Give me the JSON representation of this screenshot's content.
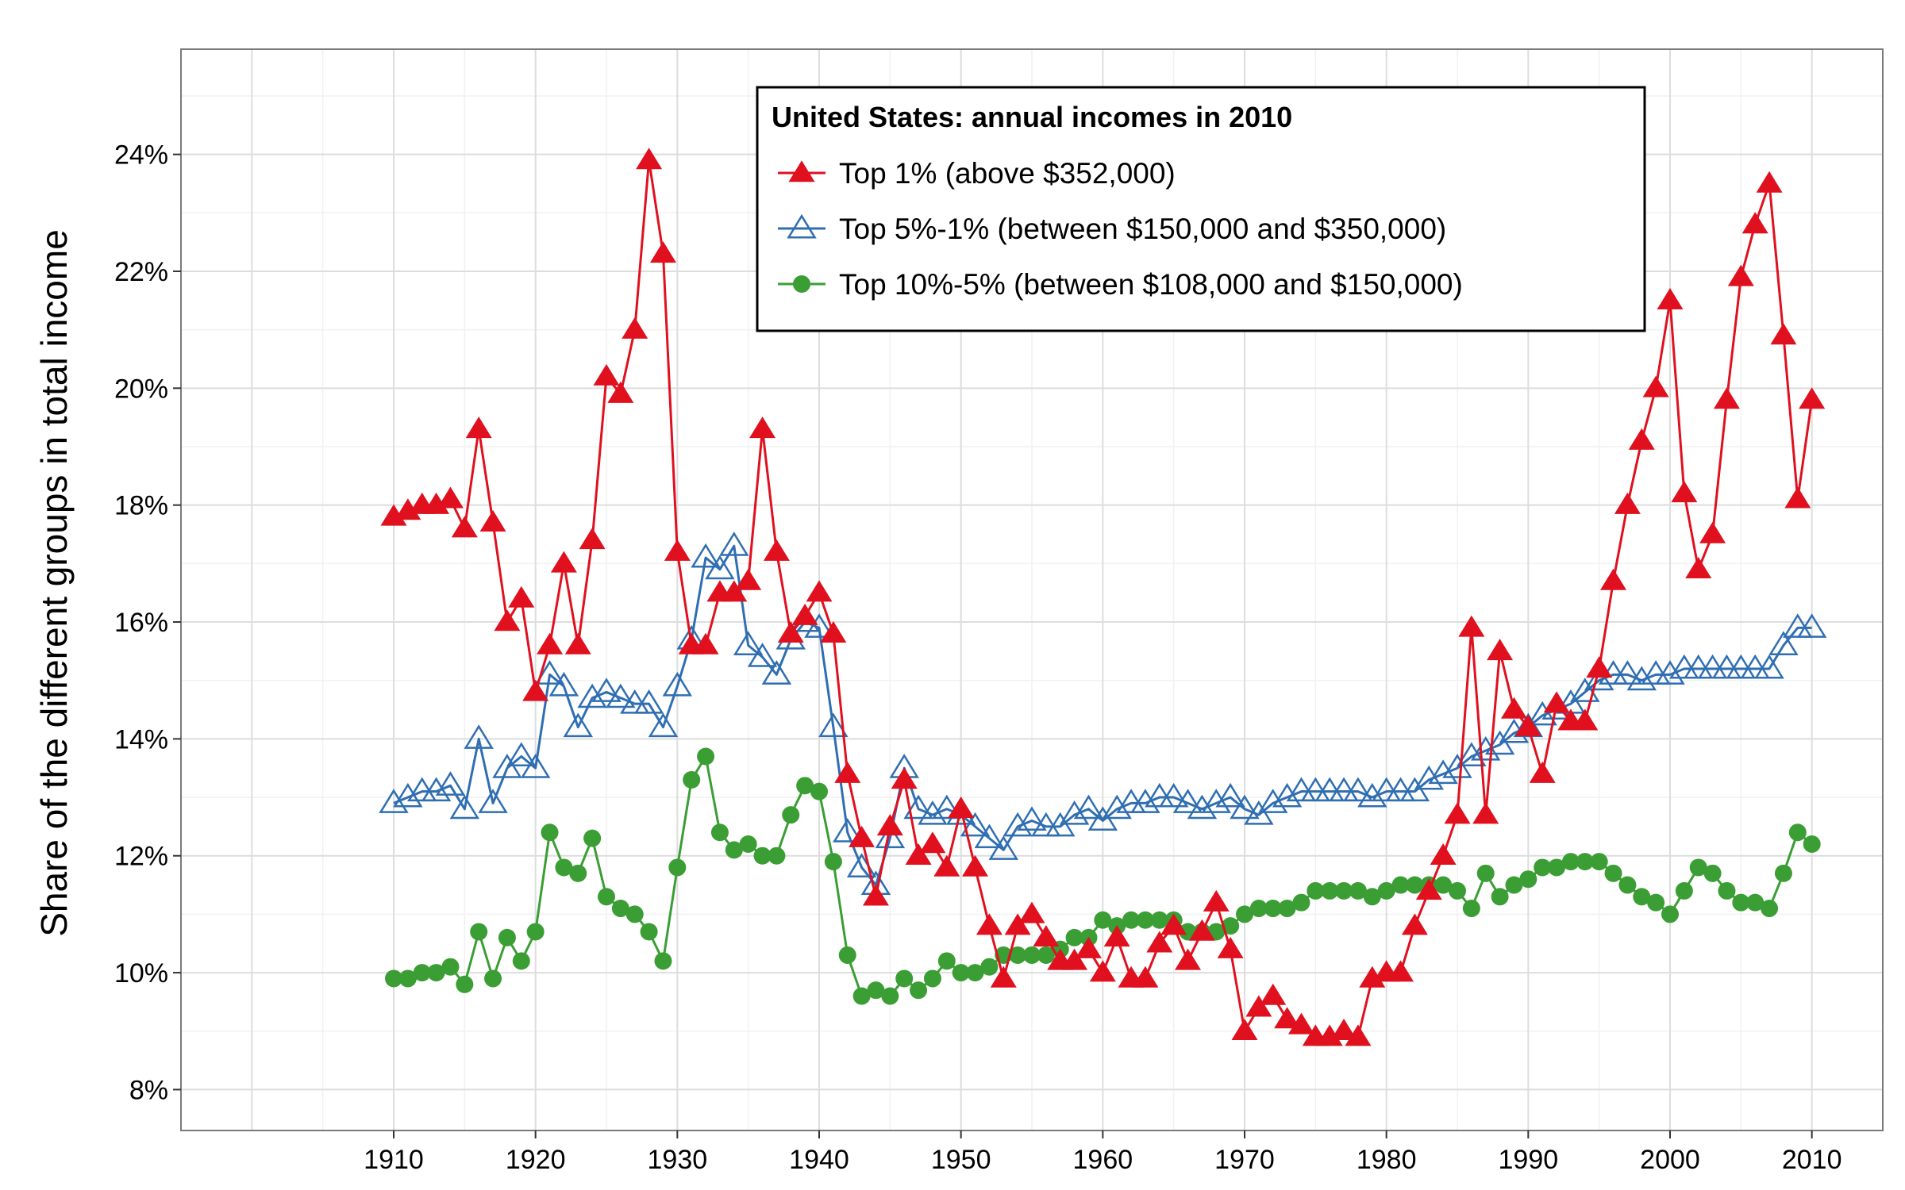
{
  "chart_data": {
    "type": "line",
    "title": "",
    "xlabel": "",
    "ylabel": "Share of the different groups in total income",
    "legend_title": "United States: annual incomes in 2010",
    "legend_position": "top-center",
    "grid": true,
    "xlim": [
      1895,
      2015
    ],
    "ylim": [
      7.3,
      25.8
    ],
    "x_ticks": [
      1910,
      1920,
      1930,
      1940,
      1950,
      1960,
      1970,
      1980,
      1990,
      2000,
      2010
    ],
    "x_tick_labels": [
      "1910",
      "1920",
      "1930",
      "1940",
      "1950",
      "1960",
      "1970",
      "1980",
      "1990",
      "2000",
      "2010"
    ],
    "y_ticks": [
      8,
      10,
      12,
      14,
      16,
      18,
      20,
      22,
      24
    ],
    "y_tick_labels": [
      "8%",
      "10%",
      "12%",
      "14%",
      "16%",
      "18%",
      "20%",
      "22%",
      "24%"
    ],
    "x_start": 1910,
    "series": [
      {
        "name": "Top 1% (above $352,000)",
        "color": "#e0101e",
        "marker": "filled-triangle",
        "values": [
          17.8,
          17.9,
          18.0,
          18.0,
          18.1,
          17.6,
          19.3,
          17.7,
          16.0,
          16.4,
          14.8,
          15.6,
          17.0,
          15.6,
          17.4,
          20.2,
          19.9,
          21.0,
          23.9,
          22.3,
          17.2,
          15.6,
          15.6,
          16.5,
          16.5,
          16.7,
          19.3,
          17.2,
          15.8,
          16.1,
          16.5,
          15.8,
          13.4,
          12.3,
          11.3,
          12.5,
          13.3,
          12.0,
          12.2,
          11.8,
          12.8,
          11.8,
          10.8,
          9.9,
          10.8,
          11.0,
          10.6,
          10.2,
          10.2,
          10.4,
          10.0,
          10.6,
          9.9,
          9.9,
          10.5,
          10.8,
          10.2,
          10.7,
          11.2,
          10.4,
          9.0,
          9.4,
          9.6,
          9.2,
          9.1,
          8.9,
          8.9,
          9.0,
          8.9,
          9.9,
          10.0,
          10.0,
          10.8,
          11.4,
          12.0,
          12.7,
          15.9,
          12.7,
          15.5,
          14.5,
          14.2,
          13.4,
          14.6,
          14.3,
          14.3,
          15.2,
          16.7,
          18.0,
          19.1,
          20.0,
          21.5,
          18.2,
          16.9,
          17.5,
          19.8,
          21.9,
          22.8,
          23.5,
          20.9,
          18.1,
          19.8
        ]
      },
      {
        "name": "Top 5%-1% (between $150,000 and $350,000)",
        "color": "#2f6eb2",
        "marker": "open-triangle",
        "values": [
          12.9,
          13.0,
          13.1,
          13.1,
          13.2,
          12.8,
          14.0,
          12.9,
          13.5,
          13.7,
          13.5,
          15.1,
          14.9,
          14.2,
          14.7,
          14.8,
          14.7,
          14.6,
          14.6,
          14.2,
          14.9,
          15.7,
          17.1,
          16.9,
          17.3,
          15.6,
          15.4,
          15.1,
          15.7,
          16.0,
          15.9,
          14.2,
          12.4,
          11.8,
          11.5,
          12.3,
          13.5,
          12.8,
          12.7,
          12.8,
          12.7,
          12.5,
          12.3,
          12.1,
          12.5,
          12.6,
          12.5,
          12.5,
          12.7,
          12.8,
          12.6,
          12.8,
          12.9,
          12.9,
          13.0,
          13.0,
          12.9,
          12.8,
          12.9,
          13.0,
          12.8,
          12.7,
          12.9,
          13.0,
          13.1,
          13.1,
          13.1,
          13.1,
          13.1,
          13.0,
          13.1,
          13.1,
          13.1,
          13.3,
          13.4,
          13.5,
          13.7,
          13.8,
          13.9,
          14.1,
          14.2,
          14.4,
          14.5,
          14.6,
          14.8,
          15.0,
          15.1,
          15.1,
          15.0,
          15.1,
          15.1,
          15.2,
          15.2,
          15.2,
          15.2,
          15.2,
          15.2,
          15.2,
          15.6,
          15.9,
          15.9
        ]
      },
      {
        "name": "Top 10%-5% (between $108,000 and $150,000)",
        "color": "#3a9e34",
        "marker": "filled-circle",
        "values": [
          9.9,
          9.9,
          10.0,
          10.0,
          10.1,
          9.8,
          10.7,
          9.9,
          10.6,
          10.2,
          10.7,
          12.4,
          11.8,
          11.7,
          12.3,
          11.3,
          11.1,
          11.0,
          10.7,
          10.2,
          11.8,
          13.3,
          13.7,
          12.4,
          12.1,
          12.2,
          12.0,
          12.0,
          12.7,
          13.2,
          13.1,
          11.9,
          10.3,
          9.6,
          9.7,
          9.6,
          9.9,
          9.7,
          9.9,
          10.2,
          10.0,
          10.0,
          10.1,
          10.3,
          10.3,
          10.3,
          10.3,
          10.4,
          10.6,
          10.6,
          10.9,
          10.8,
          10.9,
          10.9,
          10.9,
          10.9,
          10.7,
          10.7,
          10.7,
          10.8,
          11.0,
          11.1,
          11.1,
          11.1,
          11.2,
          11.4,
          11.4,
          11.4,
          11.4,
          11.3,
          11.4,
          11.5,
          11.5,
          11.5,
          11.5,
          11.4,
          11.1,
          11.7,
          11.3,
          11.5,
          11.6,
          11.8,
          11.8,
          11.9,
          11.9,
          11.9,
          11.7,
          11.5,
          11.3,
          11.2,
          11.0,
          11.4,
          11.8,
          11.7,
          11.4,
          11.2,
          11.2,
          11.1,
          11.7,
          12.4,
          12.2
        ]
      }
    ]
  }
}
